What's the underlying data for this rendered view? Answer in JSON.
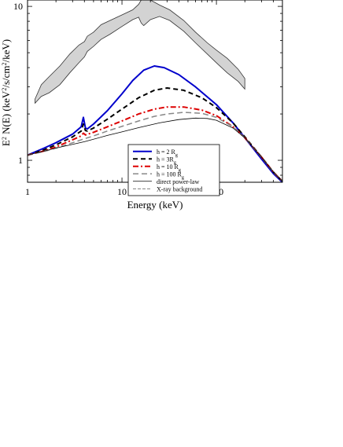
{
  "chart_data": {
    "type": "line",
    "title": "",
    "xlabel": "Energy (keV)",
    "ylabel_parts": [
      "E",
      "2",
      " N(E) (keV",
      "2",
      "/s/cm",
      "2",
      "/keV)"
    ],
    "xscale": "log",
    "yscale": "log",
    "xlim": [
      1,
      500
    ],
    "ylim": [
      0.72,
      11.0
    ],
    "x_ticks": [
      {
        "value": 1,
        "label": "1"
      },
      {
        "value": 10,
        "label": "10"
      },
      {
        "value": 100,
        "label": "100"
      }
    ],
    "y_ticks": [
      {
        "value": 1,
        "label": "1"
      },
      {
        "value": 10,
        "label": "10"
      }
    ],
    "grid": false,
    "legend_position": "center-bottom",
    "legend": [
      {
        "label": "h = 2 R",
        "sub": "g",
        "series": "h2"
      },
      {
        "label": "h = 3R",
        "sub": "g",
        "series": "h3"
      },
      {
        "label": "h = 10 R",
        "sub": "g",
        "series": "h10"
      },
      {
        "label": "h = 100 R",
        "sub": "g",
        "series": "h100"
      },
      {
        "label": "direct power-law",
        "sub": "",
        "series": "pl"
      },
      {
        "label": "X-ray background",
        "sub": "",
        "series": "bkg"
      }
    ],
    "series": [
      {
        "id": "h2",
        "color": "#0000cc",
        "width": 2,
        "dash": "",
        "points": [
          [
            1,
            1.08
          ],
          [
            1.5,
            1.2
          ],
          [
            2,
            1.3
          ],
          [
            3,
            1.48
          ],
          [
            3.7,
            1.65
          ],
          [
            3.9,
            1.9
          ],
          [
            4.1,
            1.62
          ],
          [
            4.3,
            1.6
          ],
          [
            5,
            1.72
          ],
          [
            7,
            2.1
          ],
          [
            10,
            2.7
          ],
          [
            13,
            3.3
          ],
          [
            17,
            3.85
          ],
          [
            22,
            4.1
          ],
          [
            28,
            4.0
          ],
          [
            40,
            3.6
          ],
          [
            60,
            3.0
          ],
          [
            100,
            2.3
          ],
          [
            150,
            1.75
          ],
          [
            200,
            1.4
          ],
          [
            300,
            1.02
          ],
          [
            400,
            0.82
          ],
          [
            500,
            0.72
          ]
        ]
      },
      {
        "id": "h3",
        "color": "#000000",
        "width": 2,
        "dash": "6,4",
        "points": [
          [
            1,
            1.08
          ],
          [
            1.5,
            1.17
          ],
          [
            2,
            1.26
          ],
          [
            3,
            1.42
          ],
          [
            3.7,
            1.55
          ],
          [
            3.9,
            1.72
          ],
          [
            4.1,
            1.56
          ],
          [
            4.3,
            1.55
          ],
          [
            5,
            1.62
          ],
          [
            7,
            1.85
          ],
          [
            10,
            2.15
          ],
          [
            15,
            2.55
          ],
          [
            22,
            2.85
          ],
          [
            30,
            2.95
          ],
          [
            45,
            2.85
          ],
          [
            70,
            2.55
          ],
          [
            100,
            2.2
          ],
          [
            150,
            1.75
          ],
          [
            200,
            1.42
          ],
          [
            300,
            1.05
          ],
          [
            400,
            0.84
          ],
          [
            500,
            0.73
          ]
        ]
      },
      {
        "id": "h10",
        "color": "#dd0000",
        "width": 2,
        "dash": "7,3,2,3",
        "points": [
          [
            1,
            1.08
          ],
          [
            1.5,
            1.15
          ],
          [
            2,
            1.22
          ],
          [
            3,
            1.36
          ],
          [
            3.7,
            1.44
          ],
          [
            3.9,
            1.5
          ],
          [
            4.1,
            1.46
          ],
          [
            5,
            1.52
          ],
          [
            7,
            1.65
          ],
          [
            10,
            1.8
          ],
          [
            15,
            2.0
          ],
          [
            22,
            2.15
          ],
          [
            30,
            2.22
          ],
          [
            45,
            2.22
          ],
          [
            70,
            2.12
          ],
          [
            100,
            1.95
          ],
          [
            150,
            1.65
          ],
          [
            200,
            1.4
          ],
          [
            300,
            1.05
          ],
          [
            400,
            0.84
          ],
          [
            500,
            0.73
          ]
        ]
      },
      {
        "id": "h100",
        "color": "#888888",
        "width": 1.5,
        "dash": "7,4",
        "points": [
          [
            1,
            1.08
          ],
          [
            1.5,
            1.14
          ],
          [
            2,
            1.2
          ],
          [
            3,
            1.3
          ],
          [
            4,
            1.38
          ],
          [
            5,
            1.44
          ],
          [
            7,
            1.55
          ],
          [
            10,
            1.66
          ],
          [
            15,
            1.8
          ],
          [
            22,
            1.93
          ],
          [
            30,
            2.0
          ],
          [
            45,
            2.05
          ],
          [
            70,
            2.02
          ],
          [
            100,
            1.9
          ],
          [
            150,
            1.65
          ],
          [
            200,
            1.4
          ],
          [
            300,
            1.05
          ],
          [
            400,
            0.84
          ],
          [
            500,
            0.73
          ]
        ]
      },
      {
        "id": "pl",
        "color": "#000000",
        "width": 0.8,
        "dash": "",
        "points": [
          [
            1,
            1.08
          ],
          [
            2,
            1.2
          ],
          [
            4,
            1.32
          ],
          [
            7,
            1.45
          ],
          [
            10,
            1.53
          ],
          [
            15,
            1.63
          ],
          [
            25,
            1.75
          ],
          [
            40,
            1.84
          ],
          [
            60,
            1.88
          ],
          [
            80,
            1.87
          ],
          [
            100,
            1.82
          ],
          [
            150,
            1.62
          ],
          [
            200,
            1.4
          ],
          [
            300,
            1.05
          ],
          [
            400,
            0.84
          ],
          [
            500,
            0.73
          ]
        ]
      }
    ],
    "background_band": {
      "id": "bkg",
      "fill": "#d3d3d3",
      "stroke": "#333333",
      "upper": [
        [
          1.2,
          2.5
        ],
        [
          1.4,
          3.1
        ],
        [
          1.7,
          3.5
        ],
        [
          2.2,
          4.1
        ],
        [
          2.8,
          4.9
        ],
        [
          3.5,
          5.6
        ],
        [
          4.0,
          5.9
        ],
        [
          4.3,
          6.4
        ],
        [
          5.0,
          6.8
        ],
        [
          6.0,
          7.6
        ],
        [
          7.5,
          8.1
        ],
        [
          10,
          8.8
        ],
        [
          13,
          9.5
        ],
        [
          15,
          10.3
        ],
        [
          16,
          11.0
        ],
        [
          20,
          11.0
        ],
        [
          25,
          10.2
        ],
        [
          32,
          9.5
        ],
        [
          45,
          8.1
        ],
        [
          60,
          6.8
        ],
        [
          80,
          5.8
        ],
        [
          100,
          5.2
        ],
        [
          130,
          4.6
        ],
        [
          170,
          3.9
        ],
        [
          200,
          3.4
        ]
      ],
      "lower": [
        [
          1.2,
          2.35
        ],
        [
          1.4,
          2.6
        ],
        [
          1.7,
          2.75
        ],
        [
          2.2,
          3.1
        ],
        [
          2.8,
          3.7
        ],
        [
          3.5,
          4.3
        ],
        [
          4.0,
          4.7
        ],
        [
          4.3,
          5.1
        ],
        [
          5.0,
          5.5
        ],
        [
          6.0,
          6.1
        ],
        [
          7.5,
          6.6
        ],
        [
          10,
          7.4
        ],
        [
          13,
          8.2
        ],
        [
          15,
          8.5
        ],
        [
          16,
          7.8
        ],
        [
          17,
          7.5
        ],
        [
          20,
          8.2
        ],
        [
          25,
          8.6
        ],
        [
          32,
          8.1
        ],
        [
          45,
          6.9
        ],
        [
          60,
          5.8
        ],
        [
          80,
          4.9
        ],
        [
          100,
          4.3
        ],
        [
          130,
          3.7
        ],
        [
          170,
          3.25
        ],
        [
          200,
          2.9
        ]
      ]
    }
  }
}
